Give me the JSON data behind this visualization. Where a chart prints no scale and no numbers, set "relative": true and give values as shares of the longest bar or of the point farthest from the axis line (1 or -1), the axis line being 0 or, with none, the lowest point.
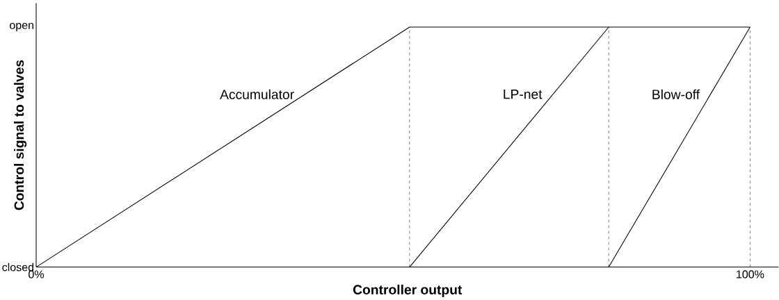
{
  "chart_data": {
    "type": "line",
    "xlabel": "Controller output",
    "ylabel": "Control signal to valves",
    "xlim": [
      0,
      104
    ],
    "relative": true,
    "xticks": [
      {
        "value": 0,
        "label": "0%"
      },
      {
        "value": 100,
        "label": "100%"
      }
    ],
    "annotations": [
      "closed",
      "open"
    ],
    "series": [
      {
        "name": "Accumulator",
        "color": "#000000",
        "x": [
          0,
          52.3,
          100
        ],
        "values": [
          0,
          1,
          1
        ]
      },
      {
        "name": "LP-net",
        "color": "#000000",
        "x": [
          52.3,
          80.2
        ],
        "values": [
          0,
          1
        ]
      },
      {
        "name": "Blow-off",
        "color": "#000000",
        "x": [
          80.2,
          100
        ],
        "values": [
          0,
          1
        ]
      }
    ],
    "ref_lines": [
      {
        "axis": "x",
        "value": 52.3,
        "color": "#000000",
        "line_style": "dashed"
      },
      {
        "axis": "x",
        "value": 80.2,
        "color": "#000000",
        "line_style": "dashed"
      },
      {
        "axis": "x",
        "value": 100,
        "color": "#000000",
        "line_style": "dashed"
      }
    ],
    "grid": false,
    "marker": "none",
    "line_style": "solid"
  }
}
